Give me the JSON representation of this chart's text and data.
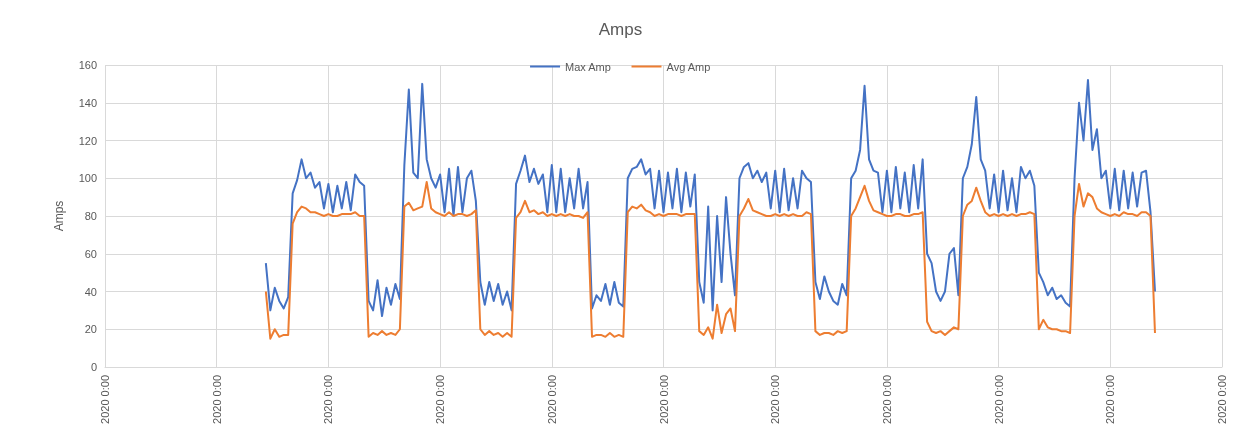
{
  "chart_data": {
    "type": "line",
    "title": "Amps",
    "ylabel": "Amps",
    "legend": "top",
    "grid": true,
    "marker": "none",
    "line_style": "solid",
    "ylim": [
      0,
      160
    ],
    "yticks": [
      0,
      20,
      40,
      60,
      80,
      100,
      120,
      140,
      160
    ],
    "categories": [
      "2020 0:00",
      null,
      null,
      null,
      null,
      null,
      null,
      null,
      null,
      null,
      null,
      null,
      null,
      null,
      null,
      null,
      null,
      null,
      null,
      null,
      null,
      null,
      null,
      null,
      null,
      "2020 0:00",
      null,
      null,
      null,
      null,
      null,
      null,
      null,
      null,
      null,
      null,
      null,
      null,
      null,
      null,
      null,
      null,
      null,
      null,
      null,
      null,
      null,
      null,
      null,
      null,
      "2020 0:00",
      null,
      null,
      null,
      null,
      null,
      null,
      null,
      null,
      null,
      null,
      null,
      null,
      null,
      null,
      null,
      null,
      null,
      null,
      null,
      null,
      null,
      null,
      null,
      null,
      "2020 0:00",
      null,
      null,
      null,
      null,
      null,
      null,
      null,
      null,
      null,
      null,
      null,
      null,
      null,
      null,
      null,
      null,
      null,
      null,
      null,
      null,
      null,
      null,
      null,
      null,
      "2020 0:00",
      null,
      null,
      null,
      null,
      null,
      null,
      null,
      null,
      null,
      null,
      null,
      null,
      null,
      null,
      null,
      null,
      null,
      null,
      null,
      null,
      null,
      null,
      null,
      null,
      "2020 0:00",
      null,
      null,
      null,
      null,
      null,
      null,
      null,
      null,
      null,
      null,
      null,
      null,
      null,
      null,
      null,
      null,
      null,
      null,
      null,
      null,
      null,
      null,
      null,
      null,
      "2020 0:00",
      null,
      null,
      null,
      null,
      null,
      null,
      null,
      null,
      null,
      null,
      null,
      null,
      null,
      null,
      null,
      null,
      null,
      null,
      null,
      null,
      null,
      null,
      null,
      null,
      "2020 0:00",
      null,
      null,
      null,
      null,
      null,
      null,
      null,
      null,
      null,
      null,
      null,
      null,
      null,
      null,
      null,
      null,
      null,
      null,
      null,
      null,
      null,
      null,
      null,
      null,
      "2020 0:00",
      null,
      null,
      null,
      null,
      null,
      null,
      null,
      null,
      null,
      null,
      null,
      null,
      null,
      null,
      null,
      null,
      null,
      null,
      null,
      null,
      null,
      null,
      null,
      null,
      "2020 0:00",
      null,
      null,
      null,
      null,
      null,
      null,
      null,
      null,
      null,
      null,
      null,
      null,
      null,
      null,
      null,
      null,
      null,
      null,
      null,
      null,
      null,
      null,
      null,
      null,
      "2020 0:00"
    ],
    "series": [
      {
        "name": "Max Amp",
        "color": "#4472c4",
        "values": [
          null,
          null,
          null,
          null,
          null,
          null,
          null,
          null,
          null,
          null,
          null,
          null,
          null,
          null,
          null,
          null,
          null,
          null,
          null,
          null,
          null,
          null,
          null,
          null,
          null,
          null,
          null,
          null,
          null,
          null,
          null,
          null,
          null,
          null,
          null,
          null,
          55,
          30,
          42,
          35,
          31,
          37,
          92,
          99,
          110,
          100,
          103,
          95,
          98,
          84,
          97,
          82,
          96,
          84,
          98,
          83,
          102,
          98,
          96,
          35,
          30,
          46,
          27,
          42,
          33,
          44,
          36,
          107,
          147,
          103,
          100,
          150,
          110,
          100,
          95,
          102,
          82,
          105,
          80,
          106,
          82,
          100,
          104,
          88,
          45,
          33,
          45,
          35,
          44,
          33,
          40,
          30,
          97,
          104,
          112,
          98,
          105,
          97,
          102,
          82,
          107,
          82,
          105,
          82,
          100,
          84,
          105,
          84,
          98,
          31,
          38,
          35,
          44,
          33,
          45,
          34,
          32,
          100,
          105,
          106,
          110,
          102,
          105,
          84,
          104,
          82,
          103,
          84,
          105,
          82,
          103,
          85,
          102,
          45,
          34,
          85,
          30,
          80,
          45,
          90,
          60,
          38,
          100,
          106,
          108,
          100,
          104,
          98,
          103,
          84,
          104,
          82,
          105,
          83,
          100,
          84,
          104,
          100,
          98,
          45,
          36,
          48,
          40,
          35,
          33,
          44,
          38,
          100,
          104,
          115,
          149,
          110,
          104,
          103,
          82,
          104,
          82,
          106,
          84,
          103,
          82,
          107,
          84,
          110,
          60,
          55,
          40,
          35,
          40,
          60,
          63,
          38,
          100,
          106,
          118,
          143,
          110,
          104,
          84,
          102,
          82,
          104,
          83,
          100,
          82,
          106,
          100,
          104,
          96,
          50,
          45,
          38,
          42,
          36,
          38,
          34,
          32,
          100,
          140,
          120,
          152,
          115,
          126,
          100,
          104,
          84,
          105,
          83,
          104,
          84,
          103,
          85,
          103,
          104,
          82,
          40,
          null,
          null,
          null,
          null,
          null,
          null,
          null,
          null,
          null,
          null,
          null,
          null,
          null,
          null,
          null
        ]
      },
      {
        "name": "Avg Amp",
        "color": "#ed7d31",
        "values": [
          null,
          null,
          null,
          null,
          null,
          null,
          null,
          null,
          null,
          null,
          null,
          null,
          null,
          null,
          null,
          null,
          null,
          null,
          null,
          null,
          null,
          null,
          null,
          null,
          null,
          null,
          null,
          null,
          null,
          null,
          null,
          null,
          null,
          null,
          null,
          null,
          40,
          15,
          20,
          16,
          17,
          17,
          76,
          82,
          85,
          84,
          82,
          82,
          81,
          80,
          81,
          80,
          80,
          81,
          81,
          81,
          82,
          80,
          80,
          16,
          18,
          17,
          19,
          17,
          18,
          17,
          20,
          85,
          87,
          83,
          84,
          85,
          98,
          84,
          82,
          81,
          80,
          82,
          80,
          81,
          81,
          80,
          81,
          83,
          20,
          17,
          19,
          17,
          18,
          16,
          18,
          16,
          79,
          82,
          88,
          82,
          83,
          81,
          82,
          80,
          81,
          80,
          81,
          80,
          81,
          80,
          80,
          79,
          82,
          16,
          17,
          17,
          16,
          18,
          16,
          17,
          16,
          82,
          85,
          84,
          86,
          83,
          82,
          80,
          81,
          80,
          81,
          81,
          81,
          80,
          81,
          81,
          81,
          19,
          17,
          21,
          15,
          33,
          18,
          28,
          31,
          19,
          80,
          84,
          89,
          83,
          82,
          81,
          80,
          80,
          81,
          80,
          81,
          80,
          81,
          80,
          80,
          82,
          81,
          19,
          17,
          18,
          18,
          17,
          19,
          18,
          19,
          80,
          84,
          90,
          96,
          88,
          83,
          82,
          81,
          80,
          80,
          81,
          81,
          80,
          80,
          81,
          81,
          82,
          24,
          19,
          18,
          19,
          17,
          19,
          21,
          20,
          80,
          86,
          88,
          95,
          88,
          82,
          80,
          81,
          80,
          81,
          80,
          81,
          80,
          81,
          81,
          82,
          81,
          20,
          25,
          21,
          20,
          20,
          19,
          19,
          18,
          80,
          97,
          85,
          92,
          90,
          84,
          82,
          81,
          80,
          81,
          80,
          82,
          81,
          81,
          80,
          82,
          82,
          80,
          18,
          null,
          null,
          null,
          null,
          null,
          null,
          null,
          null,
          null,
          null,
          null,
          null,
          null,
          null,
          null
        ]
      }
    ]
  }
}
